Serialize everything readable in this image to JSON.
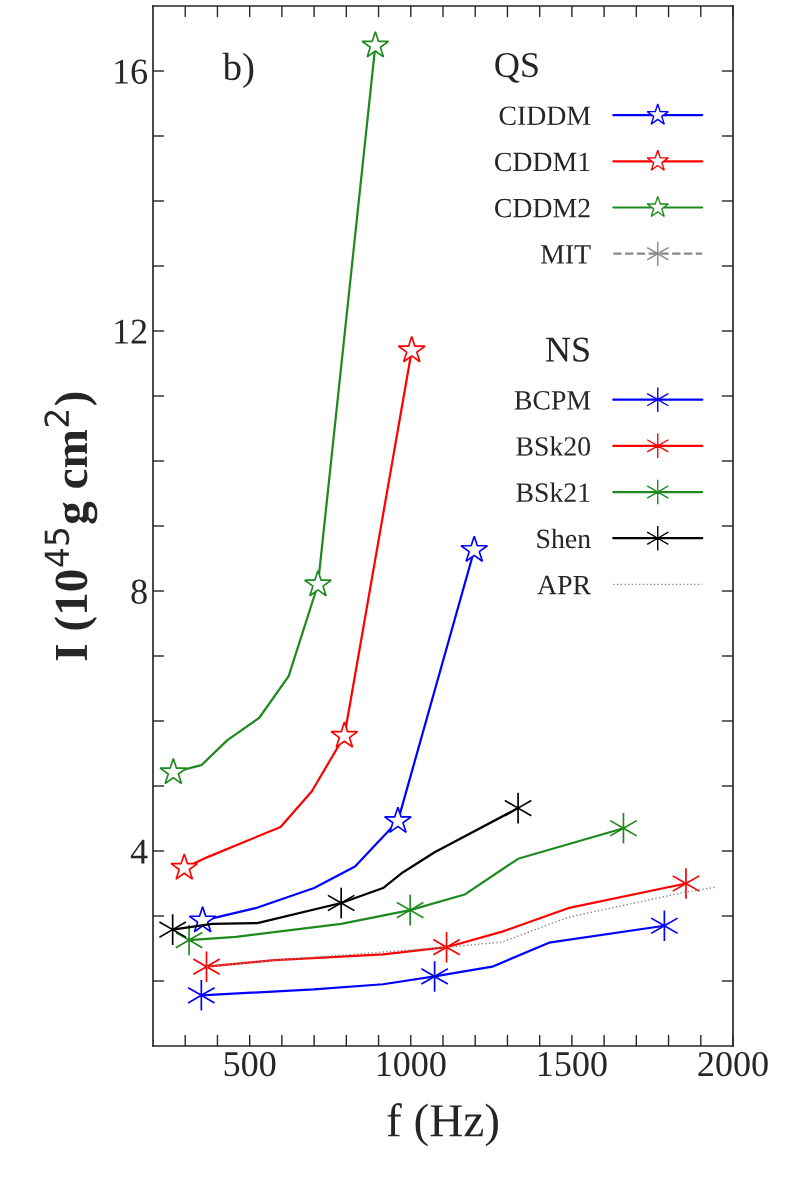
{
  "chart_data": {
    "type": "line",
    "xlabel": "f (Hz)",
    "ylabel": "I (10$^{45}$g cm$^{2}$)",
    "legend_title": "QS",
    "legend": "top right",
    "annotations": [
      "b)",
      "NS"
    ],
    "xlim": [
      200,
      2000
    ],
    "ylim": [
      1,
      17
    ],
    "xticks": [
      {
        "value": 300,
        "label": null
      },
      {
        "value": 400,
        "label": null
      },
      500,
      {
        "value": 600,
        "label": null
      },
      {
        "value": 700,
        "label": null
      },
      {
        "value": 800,
        "label": null
      },
      {
        "value": 900,
        "label": null
      },
      1000,
      {
        "value": 1100,
        "label": null
      },
      {
        "value": 1200,
        "label": null
      },
      {
        "value": 1300,
        "label": null
      },
      {
        "value": 1400,
        "label": null
      },
      1500,
      {
        "value": 1600,
        "label": null
      },
      {
        "value": 1700,
        "label": null
      },
      {
        "value": 1800,
        "label": null
      },
      {
        "value": 1900,
        "label": null
      },
      2000
    ],
    "yticks": [
      {
        "value": 2,
        "label": null
      },
      {
        "value": 3,
        "label": null
      },
      4,
      {
        "value": 5,
        "label": null
      },
      {
        "value": 6,
        "label": null
      },
      {
        "value": 7,
        "label": null
      },
      8,
      {
        "value": 9,
        "label": null
      },
      {
        "value": 10,
        "label": null
      },
      {
        "value": 11,
        "label": null
      },
      12,
      {
        "value": 13,
        "label": null
      },
      {
        "value": 14,
        "label": null
      },
      {
        "value": 15,
        "label": null
      },
      16
    ],
    "grid": false,
    "series": [
      {
        "name": "CIDDM",
        "color": "#0000ff",
        "marker": "none",
        "line_style": "solid",
        "x": [
          354,
          518,
          700,
          827,
          960,
          1197
        ],
        "values": [
          2.93,
          3.12,
          3.43,
          3.76,
          4.46,
          8.63
        ]
      },
      {
        "type": "scatter",
        "color": "#0000ff",
        "marker": "star",
        "x": [
          354,
          960,
          1197
        ],
        "values": [
          2.93,
          4.46,
          8.63
        ]
      },
      {
        "name": "CDDM1",
        "color": "#ff0000",
        "marker": "none",
        "line_style": "solid",
        "x": [
          297,
          371,
          596,
          693,
          794,
          1003
        ],
        "values": [
          3.74,
          3.91,
          4.37,
          4.92,
          5.77,
          11.7
        ]
      },
      {
        "type": "scatter",
        "color": "#ff0000",
        "marker": "star",
        "x": [
          297,
          794,
          1003
        ],
        "values": [
          3.74,
          5.77,
          11.7
        ]
      },
      {
        "name": "CDDM2",
        "color": "#1e8a1e",
        "marker": "none",
        "line_style": "solid",
        "x": [
          263,
          350,
          432,
          530,
          621,
          712,
          890
        ],
        "values": [
          5.21,
          5.32,
          5.71,
          6.05,
          6.69,
          8.1,
          16.39
        ]
      },
      {
        "type": "scatter",
        "color": "#1e8a1e",
        "marker": "star",
        "x": [
          263,
          712,
          890
        ],
        "values": [
          5.21,
          8.1,
          16.39
        ]
      },
      {
        "name": "MIT",
        "color": "#888888",
        "marker": "cross",
        "line_style": "dashed"
      },
      {
        "name": "BCPM",
        "color": "#0000ff",
        "marker": "none",
        "line_style": "solid",
        "x": [
          350,
          699,
          914,
          1074,
          1253,
          1429,
          1787
        ],
        "values": [
          1.78,
          1.87,
          1.95,
          2.07,
          2.22,
          2.59,
          2.85
        ]
      },
      {
        "type": "scatter",
        "color": "#0000ff",
        "marker": "cross",
        "x": [
          350,
          1074,
          1787
        ],
        "values": [
          1.78,
          2.07,
          2.85
        ]
      },
      {
        "name": "BSk20",
        "color": "#ff0000",
        "marker": "none",
        "line_style": "solid",
        "x": [
          366,
          578,
          914,
          1111,
          1284,
          1488,
          1854
        ],
        "values": [
          2.22,
          2.32,
          2.41,
          2.52,
          2.76,
          3.12,
          3.5
        ]
      },
      {
        "type": "scatter",
        "color": "#ff0000",
        "marker": "cross",
        "x": [
          366,
          1111,
          1854
        ],
        "values": [
          2.22,
          2.52,
          3.5
        ]
      },
      {
        "name": "BSk21",
        "color": "#1e8a1e",
        "marker": "none",
        "line_style": "solid",
        "x": [
          312,
          457,
          784,
          998,
          1167,
          1333,
          1660
        ],
        "values": [
          2.63,
          2.68,
          2.88,
          3.09,
          3.33,
          3.88,
          4.35
        ]
      },
      {
        "type": "scatter",
        "color": "#1e8a1e",
        "marker": "cross",
        "x": [
          312,
          998,
          1660
        ],
        "values": [
          2.63,
          3.09,
          4.35
        ]
      },
      {
        "name": "Shen",
        "color": "#000000",
        "marker": "none",
        "line_style": "solid",
        "x": [
          261,
          384,
          524,
          784,
          914,
          975,
          1074,
          1333
        ],
        "values": [
          2.79,
          2.88,
          2.89,
          3.2,
          3.43,
          3.67,
          3.98,
          4.66
        ]
      },
      {
        "type": "scatter",
        "color": "#000000",
        "marker": "cross",
        "x": [
          261,
          784,
          1333
        ],
        "values": [
          2.79,
          3.2,
          4.66
        ]
      },
      {
        "name": "APR",
        "color": "#888888",
        "marker": "none",
        "line_style": "dotted",
        "x": [
          366,
          578,
          1111,
          1284,
          1488,
          1854,
          1944
        ],
        "values": [
          2.22,
          2.32,
          2.52,
          2.6,
          2.98,
          3.37,
          3.44
        ]
      }
    ]
  }
}
